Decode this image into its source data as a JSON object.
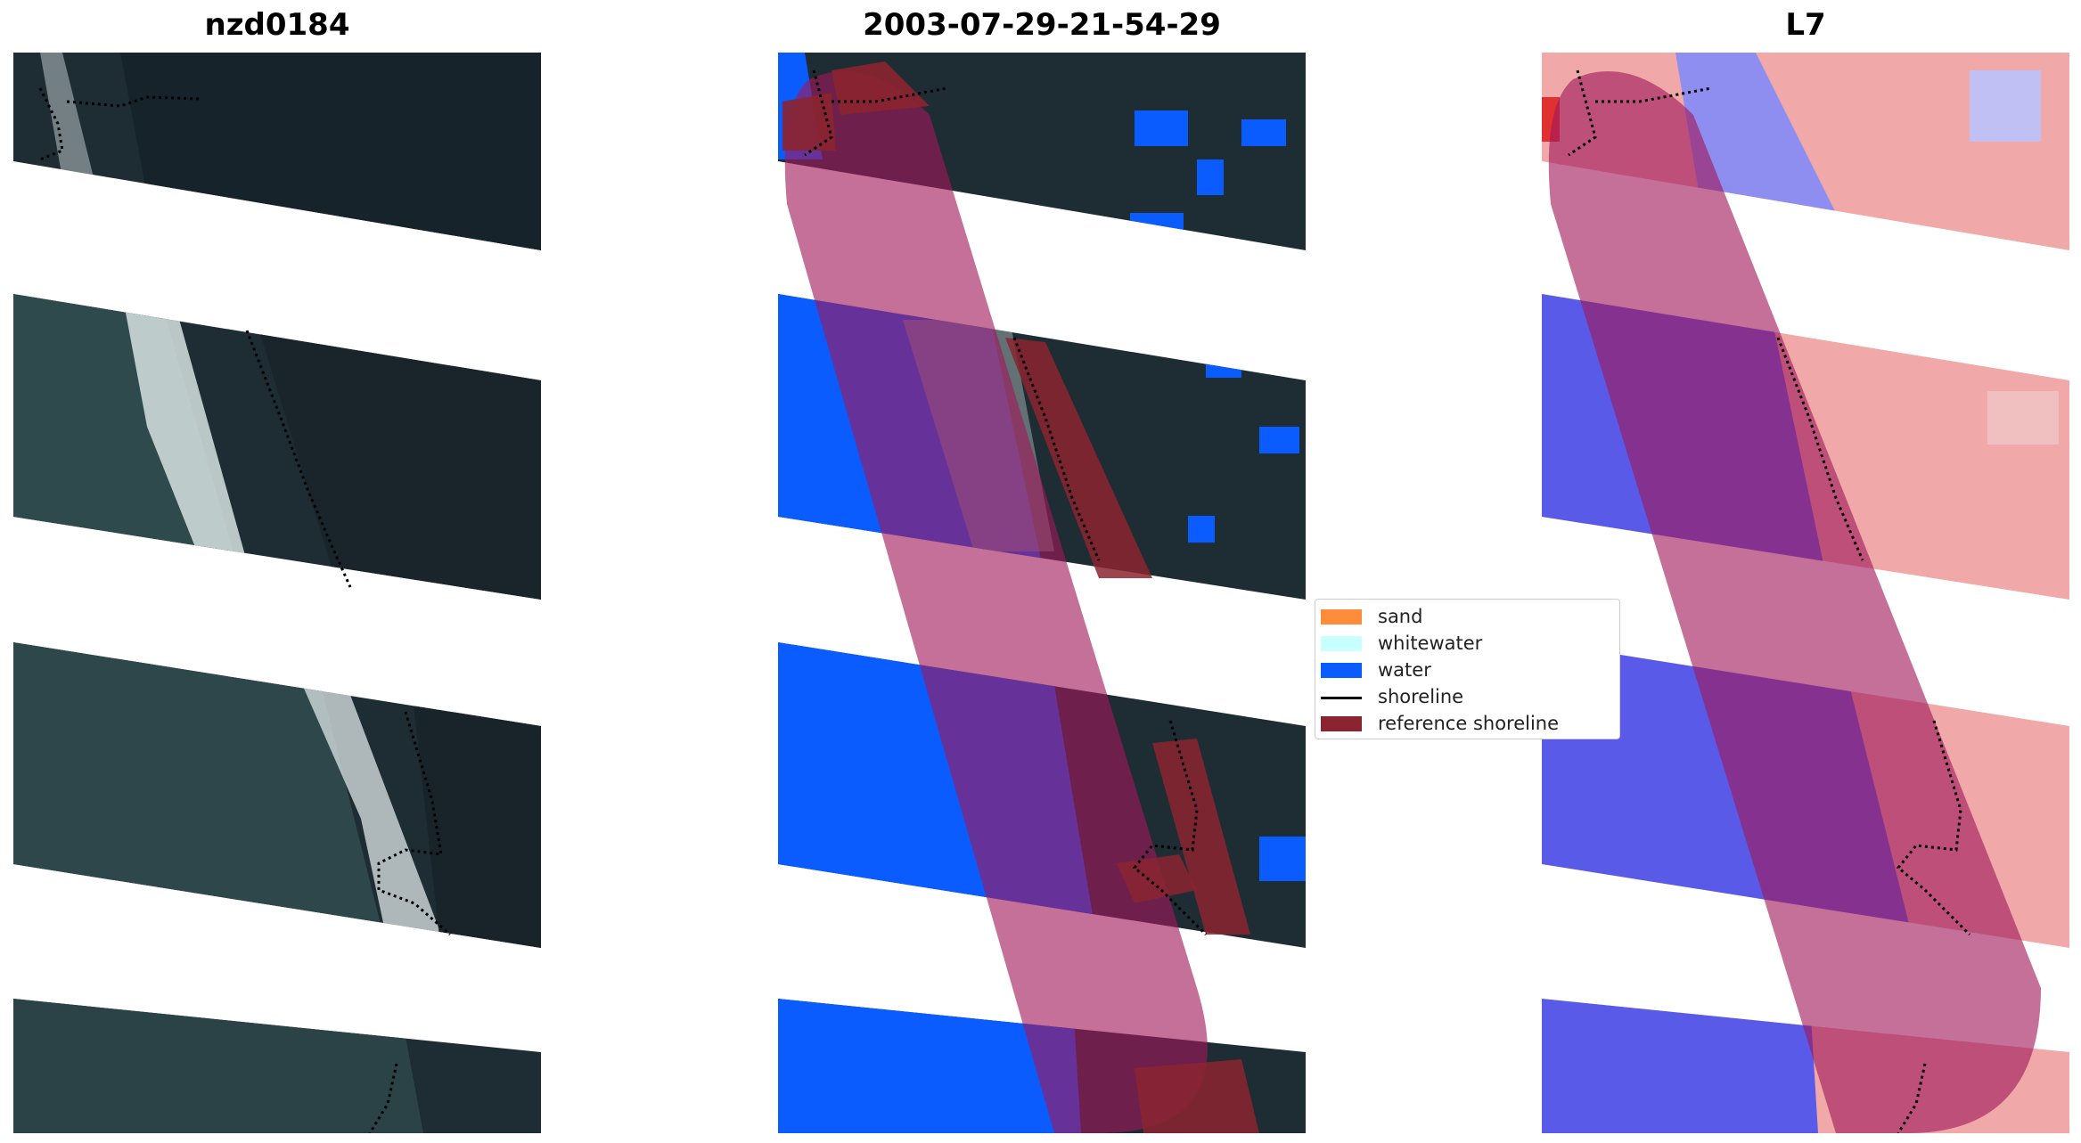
{
  "titles": {
    "left": "nzd0184",
    "center": "2003-07-29-21-54-29",
    "right": "L7"
  },
  "legend": {
    "items": [
      {
        "label": "sand",
        "color": "#ff8c3a",
        "kind": "patch"
      },
      {
        "label": "whitewater",
        "color": "#c8ffff",
        "kind": "patch"
      },
      {
        "label": "water",
        "color": "#0a5cff",
        "kind": "patch"
      },
      {
        "label": "shoreline",
        "color": "#000000",
        "kind": "line"
      },
      {
        "label": "reference shoreline",
        "color": "#8b2430",
        "kind": "patch"
      }
    ]
  },
  "colors": {
    "rgb_water": "#2d4147",
    "rgb_land": "#1d2a30",
    "whitewater_foam": "#dfe8ea",
    "classified_water": "#0a5cff",
    "buffer_overlay": "#a0185a",
    "index_water": "#5a5ae8",
    "index_land": "#f08080"
  }
}
